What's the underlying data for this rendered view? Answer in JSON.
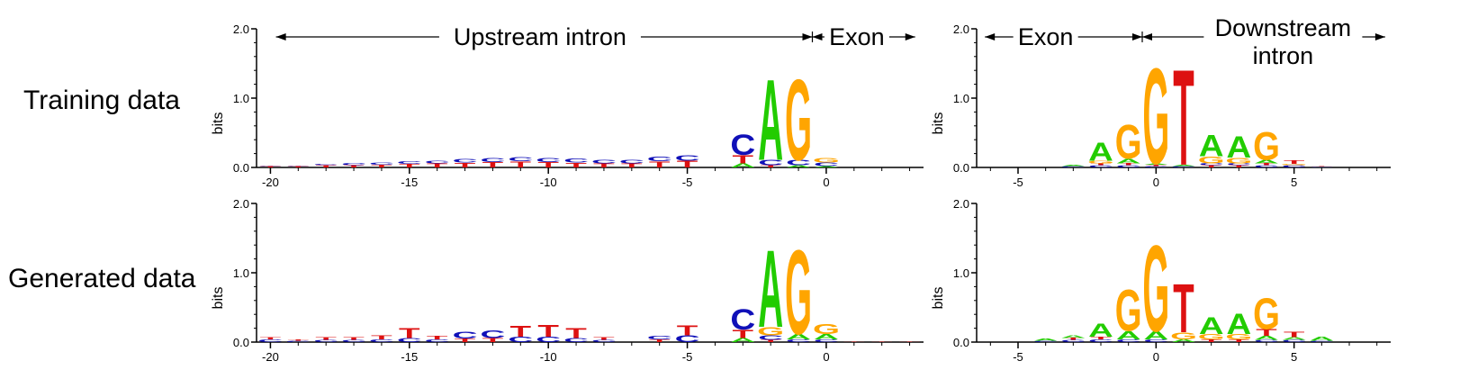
{
  "row_labels": [
    "Training data",
    "Generated data"
  ],
  "colors": {
    "A": "#22cc00",
    "C": "#1010b8",
    "G": "#ffa500",
    "T": "#dd1111"
  },
  "chart_data": [
    {
      "type": "sequence-logo",
      "row": "Training data",
      "site": "acceptor",
      "ylabel": "bits",
      "ylim": [
        0,
        2.0
      ],
      "yticks": [
        "0.0",
        "1.0",
        "2.0"
      ],
      "xlim": [
        -20.5,
        3.5
      ],
      "xticks": [
        "-20",
        "-15",
        "-10",
        "-5",
        "0"
      ],
      "region_labels": [
        "Upstream intron",
        "Exon"
      ],
      "positions": [
        {
          "pos": -20,
          "letters": [
            [
              "T",
              0.02
            ],
            [
              "C",
              0.01
            ]
          ]
        },
        {
          "pos": -19,
          "letters": [
            [
              "T",
              0.02
            ],
            [
              "C",
              0.01
            ]
          ]
        },
        {
          "pos": -18,
          "letters": [
            [
              "T",
              0.03
            ],
            [
              "C",
              0.02
            ]
          ]
        },
        {
          "pos": -17,
          "letters": [
            [
              "T",
              0.03
            ],
            [
              "C",
              0.03
            ]
          ]
        },
        {
          "pos": -16,
          "letters": [
            [
              "T",
              0.04
            ],
            [
              "C",
              0.03
            ]
          ]
        },
        {
          "pos": -15,
          "letters": [
            [
              "T",
              0.05
            ],
            [
              "C",
              0.04
            ]
          ]
        },
        {
          "pos": -14,
          "letters": [
            [
              "T",
              0.06
            ],
            [
              "C",
              0.04
            ]
          ]
        },
        {
          "pos": -13,
          "letters": [
            [
              "T",
              0.07
            ],
            [
              "C",
              0.05
            ]
          ]
        },
        {
          "pos": -12,
          "letters": [
            [
              "T",
              0.08
            ],
            [
              "C",
              0.06
            ]
          ]
        },
        {
          "pos": -11,
          "letters": [
            [
              "T",
              0.09
            ],
            [
              "C",
              0.06
            ]
          ]
        },
        {
          "pos": -10,
          "letters": [
            [
              "T",
              0.08
            ],
            [
              "C",
              0.06
            ]
          ]
        },
        {
          "pos": -9,
          "letters": [
            [
              "T",
              0.07
            ],
            [
              "C",
              0.06
            ]
          ]
        },
        {
          "pos": -8,
          "letters": [
            [
              "T",
              0.06
            ],
            [
              "C",
              0.05
            ]
          ]
        },
        {
          "pos": -7,
          "letters": [
            [
              "T",
              0.06
            ],
            [
              "C",
              0.05
            ]
          ]
        },
        {
          "pos": -6,
          "letters": [
            [
              "T",
              0.09
            ],
            [
              "C",
              0.07
            ]
          ]
        },
        {
          "pos": -5,
          "letters": [
            [
              "T",
              0.1
            ],
            [
              "C",
              0.08
            ]
          ]
        },
        {
          "pos": -3,
          "letters": [
            [
              "A",
              0.06
            ],
            [
              "T",
              0.12
            ],
            [
              "C",
              0.3
            ]
          ]
        },
        {
          "pos": -2,
          "letters": [
            [
              "T",
              0.03
            ],
            [
              "C",
              0.08
            ],
            [
              "A",
              1.2
            ]
          ]
        },
        {
          "pos": -1,
          "letters": [
            [
              "A",
              0.03
            ],
            [
              "C",
              0.08
            ],
            [
              "G",
              1.2
            ]
          ]
        },
        {
          "pos": 0,
          "letters": [
            [
              "A",
              0.02
            ],
            [
              "C",
              0.05
            ],
            [
              "G",
              0.07
            ]
          ]
        }
      ]
    },
    {
      "type": "sequence-logo",
      "row": "Training data",
      "site": "donor",
      "ylabel": "bits",
      "ylim": [
        0,
        2.0
      ],
      "yticks": [
        "0.0",
        "1.0",
        "2.0"
      ],
      "xlim": [
        -6.5,
        8.5
      ],
      "xticks": [
        "-5",
        "0",
        "5"
      ],
      "region_labels": [
        "Exon",
        "Downstream",
        "intron"
      ],
      "positions": [
        {
          "pos": -3,
          "letters": [
            [
              "C",
              0.02
            ],
            [
              "A",
              0.02
            ]
          ]
        },
        {
          "pos": -2,
          "letters": [
            [
              "C",
              0.03
            ],
            [
              "T",
              0.03
            ],
            [
              "G",
              0.04
            ],
            [
              "A",
              0.27
            ]
          ]
        },
        {
          "pos": -1,
          "letters": [
            [
              "C",
              0.03
            ],
            [
              "T",
              0.03
            ],
            [
              "A",
              0.07
            ],
            [
              "G",
              0.5
            ]
          ]
        },
        {
          "pos": 0,
          "letters": [
            [
              "C",
              0.02
            ],
            [
              "T",
              0.02
            ],
            [
              "A",
              0.02
            ],
            [
              "G",
              1.42
            ]
          ]
        },
        {
          "pos": 1,
          "letters": [
            [
              "C",
              0.02
            ],
            [
              "A",
              0.02
            ],
            [
              "T",
              1.42
            ]
          ]
        },
        {
          "pos": 2,
          "letters": [
            [
              "T",
              0.03
            ],
            [
              "C",
              0.03
            ],
            [
              "G",
              0.1
            ],
            [
              "A",
              0.32
            ]
          ]
        },
        {
          "pos": 3,
          "letters": [
            [
              "T",
              0.03
            ],
            [
              "C",
              0.03
            ],
            [
              "G",
              0.08
            ],
            [
              "A",
              0.32
            ]
          ]
        },
        {
          "pos": 4,
          "letters": [
            [
              "C",
              0.03
            ],
            [
              "T",
              0.03
            ],
            [
              "A",
              0.05
            ],
            [
              "G",
              0.42
            ]
          ]
        },
        {
          "pos": 5,
          "letters": [
            [
              "C",
              0.03
            ],
            [
              "G",
              0.02
            ],
            [
              "T",
              0.05
            ]
          ]
        },
        {
          "pos": 6,
          "letters": [
            [
              "C",
              0.01
            ],
            [
              "T",
              0.01
            ]
          ]
        }
      ]
    },
    {
      "type": "sequence-logo",
      "row": "Generated data",
      "site": "acceptor",
      "ylabel": "bits",
      "ylim": [
        0,
        2.0
      ],
      "yticks": [
        "0.0",
        "1.0",
        "2.0"
      ],
      "xlim": [
        -20.5,
        3.5
      ],
      "xticks": [
        "-20",
        "-15",
        "-10",
        "-5",
        "0"
      ],
      "positions": [
        {
          "pos": -20,
          "letters": [
            [
              "C",
              0.04
            ],
            [
              "T",
              0.03
            ]
          ]
        },
        {
          "pos": -19,
          "letters": [
            [
              "C",
              0.02
            ],
            [
              "T",
              0.02
            ]
          ]
        },
        {
          "pos": -18,
          "letters": [
            [
              "C",
              0.03
            ],
            [
              "T",
              0.04
            ]
          ]
        },
        {
          "pos": -17,
          "letters": [
            [
              "C",
              0.03
            ],
            [
              "T",
              0.04
            ]
          ]
        },
        {
          "pos": -16,
          "letters": [
            [
              "C",
              0.04
            ],
            [
              "T",
              0.06
            ]
          ]
        },
        {
          "pos": -15,
          "letters": [
            [
              "C",
              0.06
            ],
            [
              "T",
              0.15
            ]
          ]
        },
        {
          "pos": -14,
          "letters": [
            [
              "C",
              0.04
            ],
            [
              "T",
              0.05
            ]
          ]
        },
        {
          "pos": -13,
          "letters": [
            [
              "T",
              0.05
            ],
            [
              "C",
              0.1
            ]
          ]
        },
        {
          "pos": -12,
          "letters": [
            [
              "T",
              0.06
            ],
            [
              "C",
              0.11
            ]
          ]
        },
        {
          "pos": -11,
          "letters": [
            [
              "C",
              0.08
            ],
            [
              "T",
              0.16
            ]
          ]
        },
        {
          "pos": -10,
          "letters": [
            [
              "C",
              0.08
            ],
            [
              "T",
              0.17
            ]
          ]
        },
        {
          "pos": -9,
          "letters": [
            [
              "C",
              0.06
            ],
            [
              "T",
              0.15
            ]
          ]
        },
        {
          "pos": -8,
          "letters": [
            [
              "C",
              0.03
            ],
            [
              "T",
              0.04
            ]
          ]
        },
        {
          "pos": -6,
          "letters": [
            [
              "T",
              0.04
            ],
            [
              "C",
              0.05
            ]
          ]
        },
        {
          "pos": -5,
          "letters": [
            [
              "C",
              0.1
            ],
            [
              "T",
              0.15
            ]
          ]
        },
        {
          "pos": -3,
          "letters": [
            [
              "A",
              0.06
            ],
            [
              "T",
              0.12
            ],
            [
              "C",
              0.3
            ]
          ]
        },
        {
          "pos": -2,
          "letters": [
            [
              "T",
              0.03
            ],
            [
              "C",
              0.07
            ],
            [
              "G",
              0.12
            ],
            [
              "A",
              1.15
            ]
          ]
        },
        {
          "pos": -1,
          "letters": [
            [
              "C",
              0.04
            ],
            [
              "A",
              0.08
            ],
            [
              "G",
              1.25
            ]
          ]
        },
        {
          "pos": 0,
          "letters": [
            [
              "C",
              0.04
            ],
            [
              "A",
              0.08
            ],
            [
              "G",
              0.15
            ]
          ]
        },
        {
          "pos": 1,
          "letters": [
            [
              "T",
              0.01
            ]
          ]
        },
        {
          "pos": 2,
          "letters": [
            [
              "T",
              0.01
            ]
          ]
        },
        {
          "pos": 3,
          "letters": [
            [
              "T",
              0.01
            ]
          ]
        }
      ]
    },
    {
      "type": "sequence-logo",
      "row": "Generated data",
      "site": "donor",
      "ylabel": "bits",
      "ylim": [
        0,
        2.0
      ],
      "yticks": [
        "0.0",
        "1.0",
        "2.0"
      ],
      "xlim": [
        -6.5,
        8.5
      ],
      "xticks": [
        "-5",
        "0",
        "5"
      ],
      "positions": [
        {
          "pos": -4,
          "letters": [
            [
              "C",
              0.02
            ],
            [
              "A",
              0.03
            ]
          ]
        },
        {
          "pos": -3,
          "letters": [
            [
              "C",
              0.03
            ],
            [
              "T",
              0.03
            ],
            [
              "A",
              0.04
            ]
          ]
        },
        {
          "pos": -2,
          "letters": [
            [
              "C",
              0.04
            ],
            [
              "T",
              0.04
            ],
            [
              "A",
              0.2
            ]
          ]
        },
        {
          "pos": -1,
          "letters": [
            [
              "C",
              0.04
            ],
            [
              "A",
              0.12
            ],
            [
              "G",
              0.62
            ]
          ]
        },
        {
          "pos": 0,
          "letters": [
            [
              "C",
              0.04
            ],
            [
              "A",
              0.12
            ],
            [
              "G",
              1.28
            ]
          ]
        },
        {
          "pos": 1,
          "letters": [
            [
              "A",
              0.04
            ],
            [
              "G",
              0.1
            ],
            [
              "T",
              0.72
            ]
          ]
        },
        {
          "pos": 2,
          "letters": [
            [
              "T",
              0.04
            ],
            [
              "G",
              0.08
            ],
            [
              "A",
              0.25
            ]
          ]
        },
        {
          "pos": 3,
          "letters": [
            [
              "T",
              0.04
            ],
            [
              "G",
              0.08
            ],
            [
              "A",
              0.3
            ]
          ]
        },
        {
          "pos": 4,
          "letters": [
            [
              "C",
              0.03
            ],
            [
              "A",
              0.06
            ],
            [
              "T",
              0.1
            ],
            [
              "G",
              0.46
            ]
          ]
        },
        {
          "pos": 5,
          "letters": [
            [
              "C",
              0.03
            ],
            [
              "A",
              0.04
            ],
            [
              "T",
              0.08
            ]
          ]
        },
        {
          "pos": 6,
          "letters": [
            [
              "C",
              0.02
            ],
            [
              "A",
              0.06
            ]
          ]
        }
      ]
    }
  ]
}
